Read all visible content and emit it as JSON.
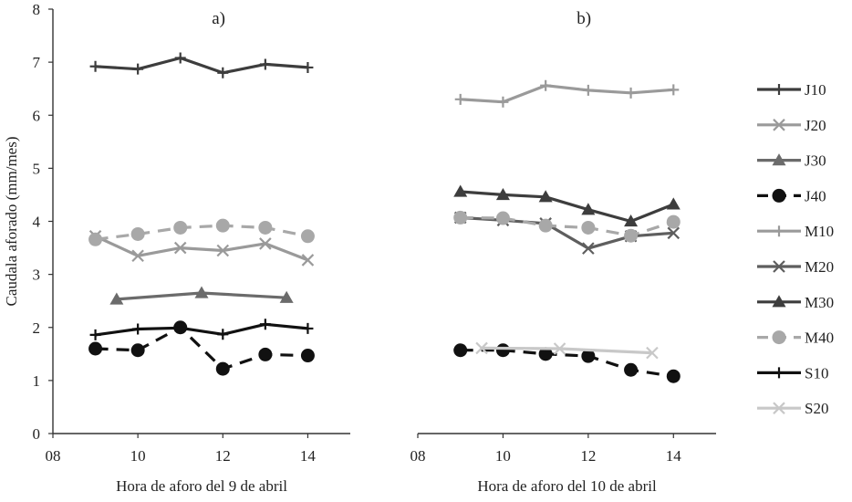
{
  "chart_data": {
    "type": "line",
    "ylabel": "Caudala aforado (mm/mes)",
    "ylim": [
      0,
      8
    ],
    "yticks": [
      "0",
      "1",
      "2",
      "3",
      "4",
      "5",
      "6",
      "7",
      "8"
    ],
    "grid": false,
    "legend_position": "right",
    "legend": [
      {
        "id": "J10",
        "label": "J10",
        "color": "#3d3d3d",
        "marker": "plus",
        "dash": false
      },
      {
        "id": "J20",
        "label": "J20",
        "color": "#9a9a9a",
        "marker": "x",
        "dash": false
      },
      {
        "id": "J30",
        "label": "J30",
        "color": "#6b6b6b",
        "marker": "triangle",
        "dash": false
      },
      {
        "id": "J40",
        "label": "J40",
        "color": "#111111",
        "marker": "circle",
        "dash": true
      },
      {
        "id": "M10",
        "label": "M10",
        "color": "#9a9a9a",
        "marker": "plus",
        "dash": false
      },
      {
        "id": "M20",
        "label": "M20",
        "color": "#5e5e5e",
        "marker": "x",
        "dash": false
      },
      {
        "id": "M30",
        "label": "M30",
        "color": "#3d3d3d",
        "marker": "triangle",
        "dash": false
      },
      {
        "id": "M40",
        "label": "M40",
        "color": "#a8a8a8",
        "marker": "circle",
        "dash": true
      },
      {
        "id": "S10",
        "label": "S10",
        "color": "#111111",
        "marker": "plus",
        "dash": false
      },
      {
        "id": "S20",
        "label": "S20",
        "color": "#c8c8c8",
        "marker": "x",
        "dash": false
      }
    ],
    "panels": [
      {
        "title": "a)",
        "xlabel": "Hora de aforo del 9 de abril",
        "xlim": [
          8,
          15
        ],
        "xticks": [
          8,
          10,
          12,
          14
        ],
        "xtick_labels": [
          "08",
          "10",
          "12",
          "14"
        ],
        "series": [
          {
            "id": "J10",
            "x": [
              9,
              10,
              11,
              12,
              13,
              14
            ],
            "y": [
              6.92,
              6.87,
              7.08,
              6.8,
              6.96,
              6.9
            ]
          },
          {
            "id": "J20",
            "x": [
              9,
              10,
              11,
              12,
              13,
              14
            ],
            "y": [
              3.72,
              3.35,
              3.5,
              3.45,
              3.58,
              3.27
            ]
          },
          {
            "id": "J30",
            "x": [
              9.5,
              11.5,
              13.5
            ],
            "y": [
              2.53,
              2.65,
              2.56
            ]
          },
          {
            "id": "J40",
            "x": [
              9,
              10,
              11,
              12,
              13,
              14
            ],
            "y": [
              1.6,
              1.57,
              2.0,
              1.22,
              1.49,
              1.47
            ]
          },
          {
            "id": "M40",
            "x": [
              9,
              10,
              11,
              12,
              13,
              14
            ],
            "y": [
              3.66,
              3.76,
              3.88,
              3.92,
              3.88,
              3.72
            ]
          },
          {
            "id": "S10",
            "x": [
              9,
              10,
              11,
              12,
              13,
              14
            ],
            "y": [
              1.86,
              1.97,
              1.99,
              1.87,
              2.06,
              1.98
            ]
          }
        ]
      },
      {
        "title": "b)",
        "xlabel": "Hora de aforo del 10 de abril",
        "xlim": [
          8,
          15
        ],
        "xticks": [
          8,
          10,
          12,
          14
        ],
        "xtick_labels": [
          "08",
          "10",
          "12",
          "14"
        ],
        "series": [
          {
            "id": "M10",
            "x": [
              9,
              10,
              11,
              12,
              13,
              14
            ],
            "y": [
              6.3,
              6.25,
              6.56,
              6.47,
              6.42,
              6.48
            ]
          },
          {
            "id": "M20",
            "x": [
              9,
              10,
              11,
              12,
              13,
              14
            ],
            "y": [
              4.07,
              4.02,
              3.96,
              3.49,
              3.72,
              3.78
            ]
          },
          {
            "id": "M30",
            "x": [
              9,
              10,
              11,
              12,
              13,
              14
            ],
            "y": [
              4.56,
              4.5,
              4.46,
              4.22,
              4.0,
              4.32
            ]
          },
          {
            "id": "M40",
            "x": [
              9,
              10,
              11,
              12,
              13,
              14
            ],
            "y": [
              4.07,
              4.06,
              3.92,
              3.88,
              3.73,
              3.99
            ]
          },
          {
            "id": "J40",
            "x": [
              9,
              10,
              11,
              12,
              13,
              14
            ],
            "y": [
              1.57,
              1.57,
              1.5,
              1.46,
              1.2,
              1.08
            ]
          },
          {
            "id": "S20",
            "x": [
              9.5,
              11.33,
              13.5
            ],
            "y": [
              1.61,
              1.6,
              1.52
            ]
          }
        ]
      }
    ]
  }
}
